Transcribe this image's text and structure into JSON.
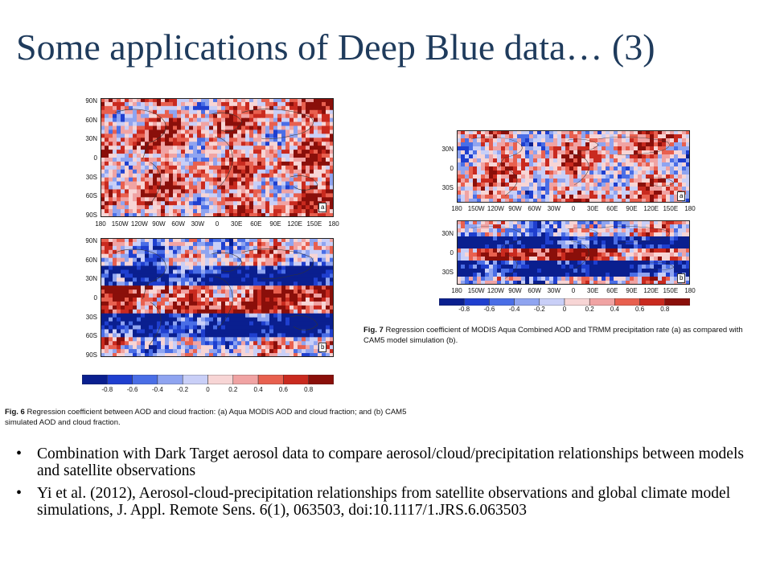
{
  "slide": {
    "title": "Some applications of Deep Blue data… (3)"
  },
  "fig6": {
    "lat_ticks": [
      "90N",
      "60N",
      "30N",
      "0",
      "30S",
      "60S",
      "90S"
    ],
    "lon_ticks": [
      "180",
      "150W",
      "120W",
      "90W",
      "60W",
      "30W",
      "0",
      "30E",
      "60E",
      "90E",
      "120E",
      "150E",
      "180"
    ],
    "panel_a_label": "a",
    "panel_b_label": "b",
    "colorbar_ticks": [
      "-0.8",
      "-0.6",
      "-0.4",
      "-0.2",
      "0",
      "0.2",
      "0.4",
      "0.6",
      "0.8"
    ],
    "caption_bold": "Fig. 6",
    "caption_text": " Regression coefficient between AOD and cloud fraction: (a) Aqua MODIS AOD and cloud fraction; and (b) CAM5 simulated AOD and cloud fraction."
  },
  "fig7": {
    "lat_ticks": [
      "30N",
      "0",
      "30S"
    ],
    "lon_ticks": [
      "180",
      "150W",
      "120W",
      "90W",
      "60W",
      "30W",
      "0",
      "30E",
      "60E",
      "90E",
      "120E",
      "150E",
      "180"
    ],
    "panel_a_label": "a",
    "panel_b_label": "b",
    "colorbar_ticks": [
      "-0.8",
      "-0.6",
      "-0.4",
      "-0.2",
      "0",
      "0.2",
      "0.4",
      "0.6",
      "0.8"
    ],
    "caption_bold": "Fig. 7",
    "caption_text": " Regression coefficient of MODIS Aqua Combined AOD and TRMM precipitation rate (a) as compared with CAM5 model simulation (b)."
  },
  "colors": {
    "scale": [
      "#0a1f8f",
      "#1f3fcf",
      "#4a6ee6",
      "#8fa4f0",
      "#c9cff7",
      "#f7d5d5",
      "#f0a3a3",
      "#e8604f",
      "#c92a1f",
      "#8a0f0a"
    ],
    "title": "#1f3b5c"
  },
  "bullets": [
    "Combination with Dark Target aerosol data to compare aerosol/cloud/precipitation relationships between models and satellite observations",
    "Yi et al. (2012), Aerosol-cloud-precipitation relationships from satellite observations and global climate model simulations, J. Appl. Remote Sens. 6(1), 063503, doi:10.1117/1.JRS.6.063503"
  ]
}
